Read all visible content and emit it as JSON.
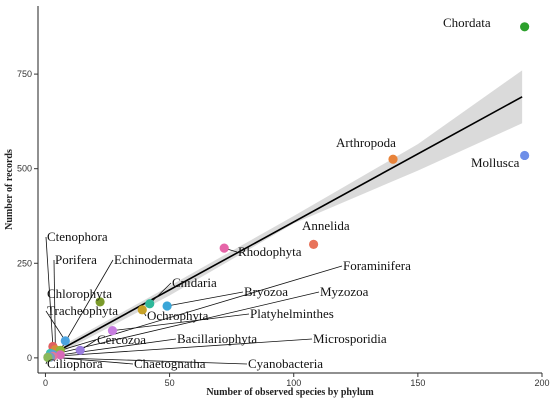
{
  "chart_data": {
    "type": "scatter",
    "xlabel": "Number of observed species by phylum",
    "ylabel": "Number of records",
    "xlim": [
      -3,
      200
    ],
    "ylim": [
      -40,
      930
    ],
    "xticks": [
      0,
      50,
      100,
      150,
      200
    ],
    "yticks": [
      0,
      250,
      500,
      750
    ],
    "grid": false,
    "regression": {
      "line": [
        [
          0,
          0
        ],
        [
          192,
          690
        ]
      ],
      "ci_upper": [
        [
          0,
          8
        ],
        [
          50,
          190
        ],
        [
          100,
          375
        ],
        [
          150,
          565
        ],
        [
          192,
          760
        ]
      ],
      "ci_lower": [
        [
          0,
          -8
        ],
        [
          50,
          165
        ],
        [
          100,
          355
        ],
        [
          150,
          495
        ],
        [
          192,
          620
        ]
      ]
    },
    "points": [
      {
        "name": "Chordata",
        "x": 193,
        "y": 875,
        "color": "#2ca02c"
      },
      {
        "name": "Mollusca",
        "x": 193,
        "y": 535,
        "color": "#6f8fe8"
      },
      {
        "name": "Arthropoda",
        "x": 140,
        "y": 525,
        "color": "#e8833a"
      },
      {
        "name": "Annelida",
        "x": 108,
        "y": 300,
        "color": "#e8735a"
      },
      {
        "name": "Rhodophyta",
        "x": 72,
        "y": 290,
        "color": "#e665a8"
      },
      {
        "name": "Chlorophyta",
        "x": 22,
        "y": 148,
        "color": "#7a9a2a"
      },
      {
        "name": "Cnidaria",
        "x": 42,
        "y": 143,
        "color": "#2fb89a"
      },
      {
        "name": "Bryozoa",
        "x": 49,
        "y": 137,
        "color": "#3aa6d8"
      },
      {
        "name": "Ochrophyta",
        "x": 39,
        "y": 127,
        "color": "#c7a227"
      },
      {
        "name": "Platyhelminthes",
        "x": 27,
        "y": 72,
        "color": "#c77de0"
      },
      {
        "name": "Tracheophyta",
        "x": 8,
        "y": 45,
        "color": "#4aa3e0"
      },
      {
        "name": "Ctenophora",
        "x": 3,
        "y": 30,
        "color": "#e06060"
      },
      {
        "name": "Porifera",
        "x": 4,
        "y": 22,
        "color": "#d98b3a"
      },
      {
        "name": "Echinodermata",
        "x": 6,
        "y": 20,
        "color": "#8fb83a"
      },
      {
        "name": "Foraminifera",
        "x": 2,
        "y": 12,
        "color": "#3ac0b0"
      },
      {
        "name": "Myzozoa",
        "x": 3,
        "y": 9,
        "color": "#5aa0d8"
      },
      {
        "name": "Cercozoa",
        "x": 14,
        "y": 20,
        "color": "#9a7de0"
      },
      {
        "name": "Bacillariophyta",
        "x": 6,
        "y": 8,
        "color": "#d86ab8"
      },
      {
        "name": "Microsporidia",
        "x": 3,
        "y": 4,
        "color": "#e07a9a"
      },
      {
        "name": "Ciliophora",
        "x": 1,
        "y": 2,
        "color": "#9a9a9a"
      },
      {
        "name": "Chaetognatha",
        "x": 2,
        "y": 2,
        "color": "#7a9ac0"
      },
      {
        "name": "Cyanobacteria",
        "x": 1,
        "y": 1,
        "color": "#8ab85a"
      }
    ]
  }
}
